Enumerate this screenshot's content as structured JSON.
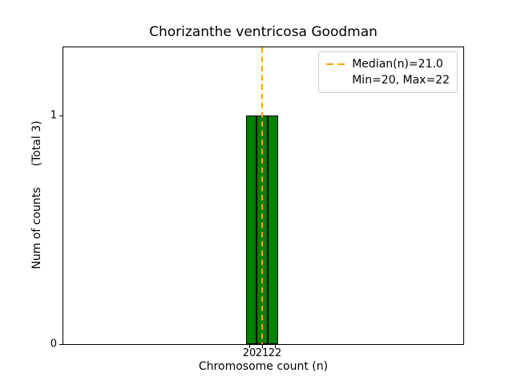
{
  "chart_data": {
    "type": "bar",
    "title": "Chorizanthe ventricosa Goodman",
    "xlabel": "Chromosome count (n)",
    "ylabel": "Num of counts",
    "ylabel_note": "(Total 3)",
    "x": [
      20,
      21,
      22
    ],
    "values": [
      1,
      1,
      1
    ],
    "total": 3,
    "median": 21.0,
    "min": 20,
    "max": 22,
    "xticks": [
      {
        "label": "20",
        "value": 20
      },
      {
        "label": "21",
        "value": 21
      },
      {
        "label": "22",
        "value": 22
      }
    ],
    "yticks": [
      {
        "label": "0",
        "value": 0
      },
      {
        "label": "1",
        "value": 1
      }
    ],
    "ylim": [
      0,
      1.3
    ],
    "grid": false,
    "bar_color": "#008000",
    "bar_edge_color": "#000000",
    "median_line_color": "#FFA500",
    "legend": {
      "position": "upper right",
      "entries": [
        {
          "label": "Median(n)=21.0",
          "marker": "orange-dashed-line"
        },
        {
          "label": "Min=20, Max=22",
          "marker": "none"
        }
      ]
    }
  }
}
